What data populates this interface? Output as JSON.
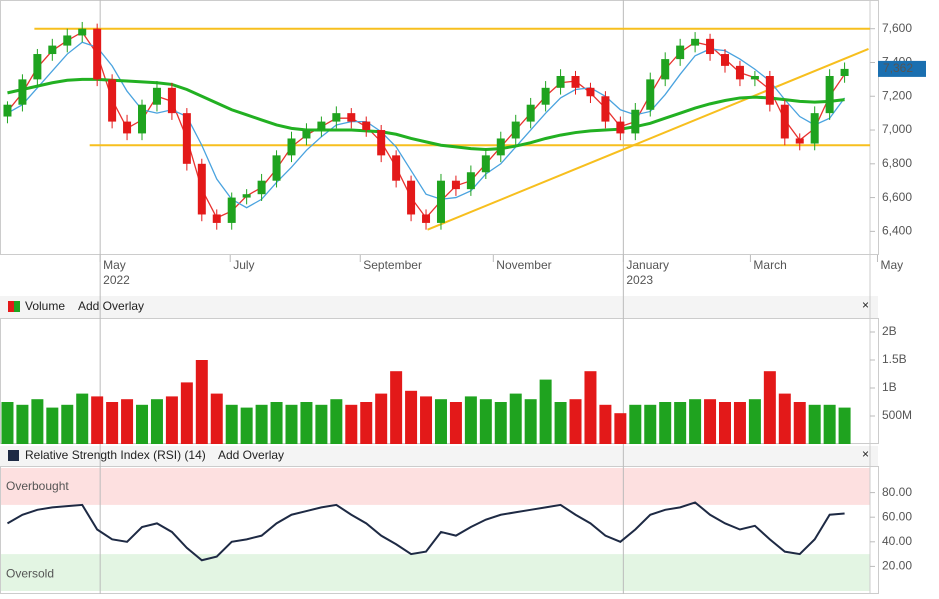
{
  "chart_data": [
    {
      "type": "candlestick",
      "xlim": [
        0,
        58.2
      ],
      "xticks": [
        {
          "value": 6.7,
          "label": "May",
          "year": "2022"
        },
        {
          "value": 15.4,
          "label": "July"
        },
        {
          "value": 24.1,
          "label": "September"
        },
        {
          "value": 33.0,
          "label": "November"
        },
        {
          "value": 41.7,
          "label": "January",
          "year": "2023"
        },
        {
          "value": 50.2,
          "label": "March"
        },
        {
          "value": 58.7,
          "label": "May"
        }
      ],
      "ylim": [
        6260,
        7770
      ],
      "yticks": [
        {
          "value": 6400,
          "label": "6,400"
        },
        {
          "value": 6600,
          "label": "6,600"
        },
        {
          "value": 6800,
          "label": "6,800"
        },
        {
          "value": 7000,
          "label": "7,000"
        },
        {
          "value": 7200,
          "label": "7,200"
        },
        {
          "value": 7400,
          "label": "7,400"
        },
        {
          "value": 7600,
          "label": "7,600"
        }
      ],
      "open": [
        7080,
        7150,
        7300,
        7450,
        7500,
        7560,
        7600,
        7300,
        7050,
        6980,
        7150,
        7250,
        7100,
        6800,
        6500,
        6450,
        6600,
        6620,
        6700,
        6850,
        6950,
        7000,
        7050,
        7100,
        7050,
        7000,
        6850,
        6700,
        6500,
        6450,
        6700,
        6650,
        6750,
        6850,
        6950,
        7050,
        7150,
        7250,
        7320,
        7250,
        7200,
        7050,
        6980,
        7120,
        7300,
        7420,
        7500,
        7540,
        7450,
        7380,
        7300,
        7320,
        7150,
        6950,
        6920,
        7100,
        7320
      ],
      "high": [
        7170,
        7330,
        7480,
        7540,
        7600,
        7640,
        7630,
        7330,
        7090,
        7180,
        7290,
        7280,
        7130,
        6830,
        6530,
        6630,
        6650,
        6740,
        6880,
        6990,
        7040,
        7080,
        7140,
        7130,
        7080,
        7030,
        6880,
        6730,
        6530,
        6740,
        6730,
        6790,
        6890,
        6990,
        7090,
        7190,
        7290,
        7360,
        7350,
        7280,
        7230,
        7080,
        7160,
        7340,
        7460,
        7540,
        7580,
        7570,
        7480,
        7410,
        7350,
        7350,
        7180,
        6980,
        7140,
        7360,
        7400
      ],
      "low": [
        7040,
        7110,
        7260,
        7410,
        7460,
        7520,
        7260,
        7010,
        6940,
        6940,
        7110,
        7060,
        6760,
        6460,
        6410,
        6410,
        6560,
        6580,
        6660,
        6810,
        6910,
        6960,
        7010,
        7010,
        6960,
        6810,
        6660,
        6460,
        6410,
        6410,
        6610,
        6610,
        6710,
        6810,
        6910,
        7010,
        7110,
        7210,
        7210,
        7160,
        7010,
        6940,
        6940,
        7080,
        7260,
        7380,
        7460,
        7410,
        7340,
        7260,
        7260,
        7110,
        6910,
        6880,
        6880,
        7060,
        7280
      ],
      "close": [
        7150,
        7300,
        7450,
        7500,
        7560,
        7600,
        7300,
        7050,
        6980,
        7150,
        7250,
        7100,
        6800,
        6500,
        6450,
        6600,
        6620,
        6700,
        6850,
        6950,
        7000,
        7050,
        7100,
        7050,
        7000,
        6850,
        6700,
        6500,
        6450,
        6700,
        6650,
        6750,
        6850,
        6950,
        7050,
        7150,
        7250,
        7320,
        7250,
        7200,
        7050,
        6980,
        7120,
        7300,
        7420,
        7500,
        7540,
        7450,
        7380,
        7300,
        7320,
        7150,
        6950,
        6920,
        7100,
        7320,
        7362
      ],
      "up_color": "#1fa31f",
      "down_color": "#e31919",
      "overlays": [
        {
          "color": "#e8322f",
          "width": 1.3,
          "values": [
            7110,
            7220,
            7370,
            7470,
            7530,
            7580,
            7450,
            7180,
            7010,
            7060,
            7200,
            7170,
            6950,
            6650,
            6480,
            6520,
            6610,
            6660,
            6770,
            6900,
            6970,
            7020,
            7070,
            7070,
            7020,
            6930,
            6780,
            6600,
            6480,
            6580,
            6670,
            6700,
            6800,
            6900,
            7000,
            7100,
            7200,
            7280,
            7290,
            7220,
            7130,
            7020,
            7050,
            7210,
            7360,
            7460,
            7520,
            7500,
            7420,
            7340,
            7310,
            7240,
            7060,
            6940,
            7010,
            7200,
            7330
          ]
        },
        {
          "color": "#4aa3df",
          "width": 1.3,
          "values": [
            7100,
            7150,
            7250,
            7350,
            7450,
            7520,
            7490,
            7380,
            7230,
            7120,
            7100,
            7120,
            7080,
            6910,
            6710,
            6590,
            6540,
            6590,
            6690,
            6780,
            6880,
            6960,
            7030,
            7050,
            7050,
            6990,
            6900,
            6760,
            6620,
            6590,
            6600,
            6640,
            6740,
            6800,
            6900,
            7000,
            7100,
            7190,
            7240,
            7250,
            7200,
            7120,
            7090,
            7110,
            7210,
            7330,
            7440,
            7480,
            7470,
            7420,
            7360,
            7290,
            7180,
            7080,
            7030,
            7070,
            7190
          ]
        },
        {
          "color": "#22b022",
          "width": 3,
          "values": [
            7220,
            7240,
            7260,
            7280,
            7295,
            7300,
            7300,
            7295,
            7290,
            7285,
            7280,
            7270,
            7240,
            7200,
            7160,
            7120,
            7090,
            7060,
            7030,
            7010,
            7000,
            7000,
            7000,
            7000,
            6995,
            6990,
            6975,
            6950,
            6930,
            6910,
            6900,
            6890,
            6885,
            6890,
            6905,
            6925,
            6950,
            6970,
            6985,
            6995,
            7000,
            7005,
            7020,
            7040,
            7070,
            7100,
            7130,
            7155,
            7175,
            7190,
            7195,
            7190,
            7180,
            7170,
            7165,
            7170,
            7180
          ]
        }
      ],
      "line_color": "#f7bf1e",
      "hlines": [
        {
          "value": 7600,
          "from": 2.3
        },
        {
          "value": 6910,
          "from": 6.0
        }
      ],
      "trendline": {
        "x": [
          28.6,
          58.1
        ],
        "y": [
          6410,
          7480
        ]
      },
      "last_price": {
        "value": 7362,
        "label": "7,362"
      }
    },
    {
      "type": "bar",
      "title": "Volume",
      "action": "Add Overlay",
      "ylim": [
        0,
        2250000000
      ],
      "yticks": [
        {
          "value": 500000000,
          "label": "500M"
        },
        {
          "value": 1000000000,
          "label": "1B"
        },
        {
          "value": 1500000000,
          "label": "1.5B"
        },
        {
          "value": 2000000000,
          "label": "2B"
        }
      ],
      "values": [
        750000000,
        700000000,
        800000000,
        650000000,
        700000000,
        900000000,
        850000000,
        750000000,
        800000000,
        700000000,
        800000000,
        850000000,
        1100000000,
        1500000000,
        900000000,
        700000000,
        650000000,
        700000000,
        750000000,
        700000000,
        750000000,
        700000000,
        800000000,
        700000000,
        750000000,
        900000000,
        1300000000,
        950000000,
        850000000,
        800000000,
        750000000,
        850000000,
        800000000,
        750000000,
        900000000,
        800000000,
        1150000000,
        750000000,
        800000000,
        1300000000,
        700000000,
        550000000,
        700000000,
        700000000,
        750000000,
        750000000,
        800000000,
        800000000,
        750000000,
        750000000,
        800000000,
        1300000000,
        900000000,
        750000000,
        700000000,
        700000000,
        650000000
      ]
    },
    {
      "type": "line",
      "title": "Relative Strength Index (RSI) (14)",
      "action": "Add Overlay",
      "ylim": [
        0,
        100
      ],
      "yticks": [
        {
          "value": 20,
          "label": "20.00"
        },
        {
          "value": 40,
          "label": "40.00"
        },
        {
          "value": 60,
          "label": "60.00"
        },
        {
          "value": 80,
          "label": "80.00"
        }
      ],
      "color": "#1e2a44",
      "values": [
        55,
        62,
        66,
        68,
        69,
        70,
        50,
        42,
        40,
        52,
        55,
        48,
        35,
        25,
        28,
        40,
        42,
        45,
        55,
        62,
        65,
        68,
        70,
        62,
        55,
        45,
        38,
        30,
        32,
        48,
        45,
        52,
        58,
        62,
        64,
        66,
        68,
        70,
        62,
        55,
        45,
        40,
        50,
        62,
        66,
        68,
        72,
        62,
        55,
        50,
        53,
        42,
        32,
        30,
        42,
        62,
        63
      ],
      "bands": [
        {
          "label": "Overbought",
          "from": 70,
          "to": 100,
          "color": "#fde0e0"
        },
        {
          "label": "Oversold",
          "from": 0,
          "to": 30,
          "color": "#e3f5e3"
        }
      ]
    }
  ]
}
